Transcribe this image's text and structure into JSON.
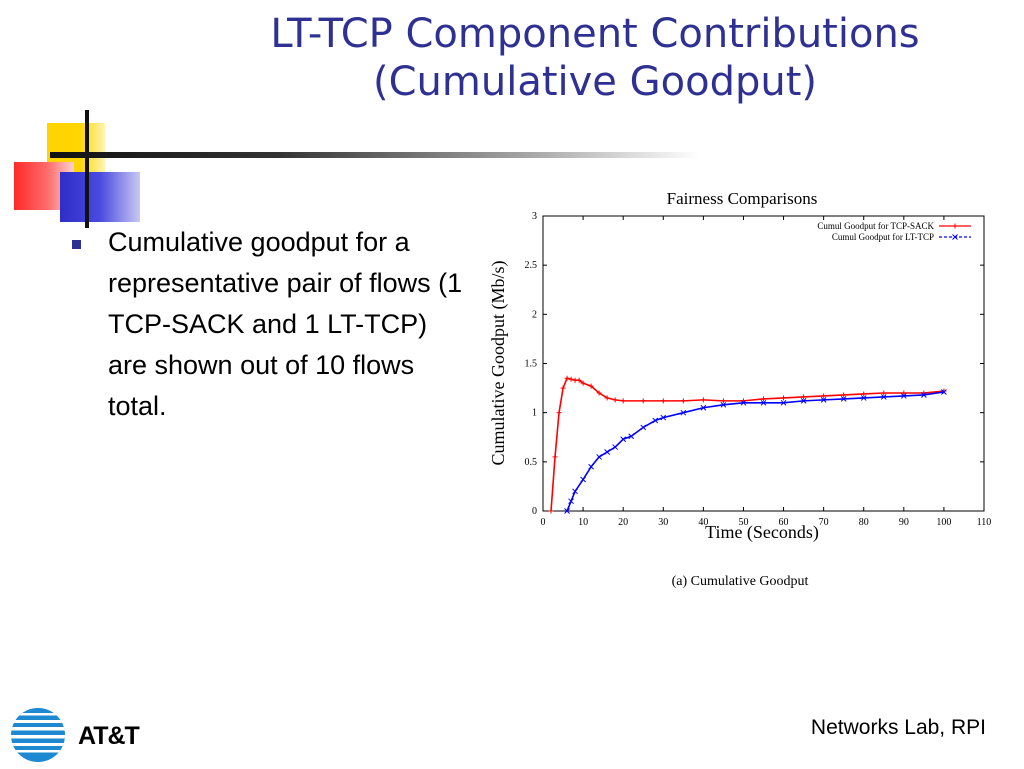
{
  "slide": {
    "title_line1": "LT-TCP Component Contributions",
    "title_line2": "(Cumulative Goodput)",
    "bullets": [
      {
        "text": "Cumulative goodput for a representative pair of flows (1 TCP-SACK and 1 LT-TCP) are shown out of 10 flows total."
      }
    ],
    "footer": "Networks Lab, RPI",
    "logo_text": "AT&T"
  },
  "colors": {
    "title": "#2e3192",
    "tcp_sack": "#ff0000",
    "lt_tcp": "#0000ff"
  },
  "chart_data": {
    "type": "line",
    "title": "Fairness Comparisons",
    "xlabel": "Time (Seconds)",
    "ylabel": "Cumulative Goodput (Mb/s)",
    "caption": "(a) Cumulative Goodput",
    "xlim": [
      0,
      110
    ],
    "ylim": [
      0,
      3
    ],
    "x_ticks": [
      0,
      10,
      20,
      30,
      40,
      50,
      60,
      70,
      80,
      90,
      100,
      110
    ],
    "y_ticks": [
      0,
      0.5,
      1,
      1.5,
      2,
      2.5,
      3
    ],
    "legend_position": "top-right",
    "grid": false,
    "series": [
      {
        "name": "Cumul Goodput for TCP-SACK",
        "color": "#ff0000",
        "marker": "+",
        "x": [
          2,
          3,
          4,
          5,
          6,
          7,
          8,
          9,
          10,
          12,
          14,
          16,
          18,
          20,
          25,
          30,
          35,
          40,
          45,
          50,
          55,
          60,
          65,
          70,
          75,
          80,
          85,
          90,
          95,
          100
        ],
        "y": [
          0,
          0.55,
          1.0,
          1.25,
          1.35,
          1.34,
          1.33,
          1.33,
          1.3,
          1.27,
          1.2,
          1.15,
          1.13,
          1.12,
          1.12,
          1.12,
          1.12,
          1.13,
          1.12,
          1.12,
          1.14,
          1.15,
          1.16,
          1.17,
          1.18,
          1.19,
          1.2,
          1.2,
          1.2,
          1.22
        ]
      },
      {
        "name": "Cumul Goodput for LT-TCP",
        "color": "#0000ff",
        "marker": "x",
        "x": [
          6,
          7,
          8,
          10,
          12,
          14,
          16,
          18,
          20,
          22,
          25,
          28,
          30,
          35,
          40,
          45,
          50,
          55,
          60,
          65,
          70,
          75,
          80,
          85,
          90,
          95,
          100
        ],
        "y": [
          0,
          0.1,
          0.2,
          0.32,
          0.45,
          0.55,
          0.6,
          0.65,
          0.73,
          0.76,
          0.85,
          0.92,
          0.95,
          1.0,
          1.05,
          1.08,
          1.1,
          1.1,
          1.1,
          1.12,
          1.13,
          1.14,
          1.15,
          1.16,
          1.17,
          1.18,
          1.21
        ]
      }
    ]
  }
}
